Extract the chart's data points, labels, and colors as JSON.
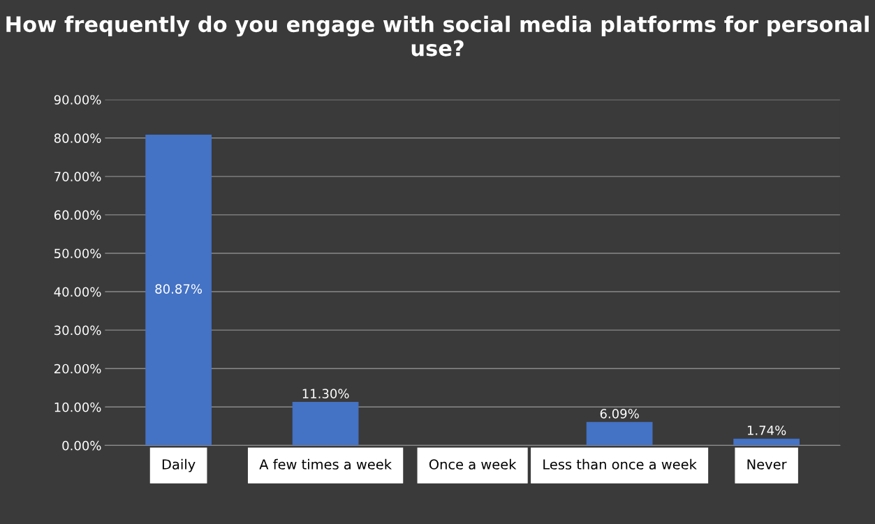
{
  "chart_data": {
    "type": "bar",
    "title": "How frequently do you engage with social media platforms for personal use?",
    "categories": [
      "Daily",
      "A few times a week",
      "Once a week",
      "Less than once a week",
      "Never"
    ],
    "values": [
      80.87,
      11.3,
      null,
      6.09,
      1.74
    ],
    "value_labels": [
      "80.87%",
      "11.30%",
      null,
      "6.09%",
      "1.74%"
    ],
    "color": "#4472c4",
    "ylim": [
      0,
      90
    ],
    "yticks": [
      {
        "value": 0,
        "label": "0.00%"
      },
      {
        "value": 10,
        "label": "10.00%"
      },
      {
        "value": 20,
        "label": "20.00%"
      },
      {
        "value": 30,
        "label": "30.00%"
      },
      {
        "value": 40,
        "label": "40.00%"
      },
      {
        "value": 50,
        "label": "50.00%"
      },
      {
        "value": 60,
        "label": "60.00%"
      },
      {
        "value": 70,
        "label": "70.00%"
      },
      {
        "value": 80,
        "label": "80.00%"
      },
      {
        "value": 90,
        "label": "90.00%"
      }
    ],
    "grid": "y"
  }
}
